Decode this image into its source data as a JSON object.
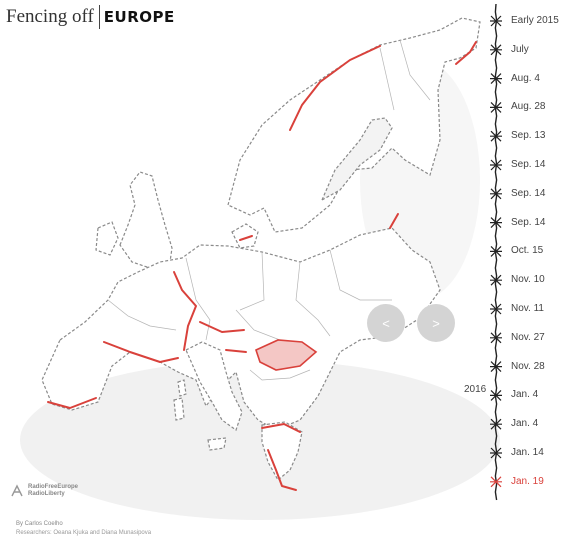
{
  "title": {
    "lead": "Fencing off",
    "accent": "EUROPE"
  },
  "colors": {
    "fence": "#d9413b",
    "highlight_fill": "#f4c7c5",
    "land": "#ffffff",
    "border": "#8c8c8c",
    "current_event": "#d9413b"
  },
  "navigation": {
    "prev_icon": "chevron-left-icon",
    "prev_glyph": "<",
    "next_icon": "chevron-right-icon",
    "next_glyph": ">"
  },
  "timeline": {
    "year_marker": "2016",
    "events": [
      {
        "label": "Early 2015",
        "current": false
      },
      {
        "label": "July",
        "current": false
      },
      {
        "label": "Aug. 4",
        "current": false
      },
      {
        "label": "Aug. 28",
        "current": false
      },
      {
        "label": "Sep. 13",
        "current": false
      },
      {
        "label": "Sep. 14",
        "current": false
      },
      {
        "label": "Sep. 14",
        "current": false
      },
      {
        "label": "Sep. 14",
        "current": false
      },
      {
        "label": "Oct. 15",
        "current": false
      },
      {
        "label": "Nov. 10",
        "current": false
      },
      {
        "label": "Nov. 11",
        "current": false
      },
      {
        "label": "Nov. 27",
        "current": false
      },
      {
        "label": "Nov. 28",
        "current": false
      },
      {
        "label": "Jan. 4",
        "current": false
      },
      {
        "label": "Jan. 4",
        "current": false
      },
      {
        "label": "Jan. 14",
        "current": false
      },
      {
        "label": "Jan. 19",
        "current": true
      }
    ]
  },
  "logo": {
    "icon": "rferl-logo-icon",
    "line1": "RadioFreeEurope",
    "line2": "RadioLiberty"
  },
  "credits": {
    "author": "By Carlos Coelho",
    "researchers_label": "Researchers:",
    "researchers": "Oeana Kjuka and Diana Munasipova"
  }
}
